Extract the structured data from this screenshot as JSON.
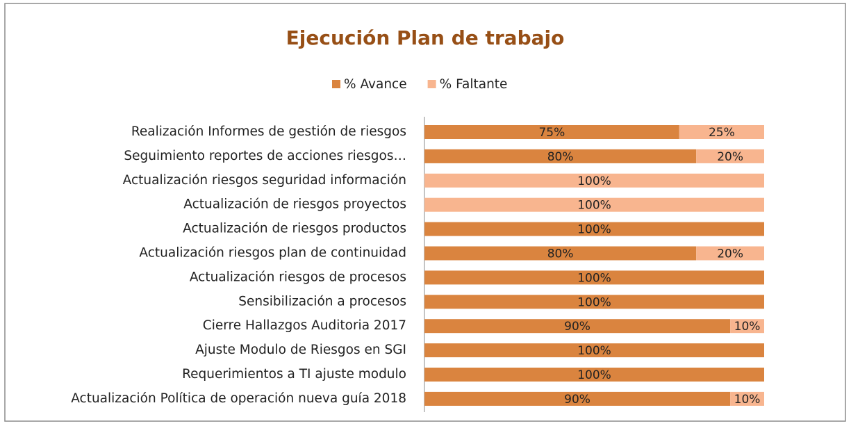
{
  "chart_data": {
    "type": "stacked_bar_horizontal",
    "title": "Ejecución Plan de trabajo",
    "categories": [
      "Realización Informes de gestión de riesgos",
      "Seguimiento reportes de acciones riesgos…",
      "Actualización riesgos seguridad información",
      "Actualización de riesgos proyectos",
      "Actualización de riesgos productos",
      "Actualización riesgos plan de continuidad",
      "Actualización riesgos de procesos",
      "Sensibilización a procesos",
      "Cierre Hallazgos Auditoria 2017",
      "Ajuste Modulo de Riesgos en SGI",
      "Requerimientos a TI ajuste modulo",
      "Actualización Política de operación nueva guía 2018"
    ],
    "series": [
      {
        "name": "% Avance",
        "color": "#da843f",
        "values": [
          75,
          80,
          0,
          0,
          100,
          80,
          100,
          100,
          90,
          100,
          100,
          90
        ],
        "value_labels": [
          "75%",
          "80%",
          null,
          null,
          "100%",
          "80%",
          "100%",
          "100%",
          "90%",
          "100%",
          "100%",
          "90%"
        ]
      },
      {
        "name": "% Faltante",
        "color": "#f8b58f",
        "values": [
          25,
          20,
          100,
          100,
          0,
          20,
          0,
          0,
          10,
          0,
          0,
          10
        ],
        "value_labels": [
          "25%",
          "20%",
          "100%",
          "100%",
          null,
          "20%",
          null,
          null,
          "10%",
          null,
          null,
          "10%"
        ]
      }
    ],
    "xlim": [
      0,
      100
    ],
    "title_color": "#974f16"
  }
}
